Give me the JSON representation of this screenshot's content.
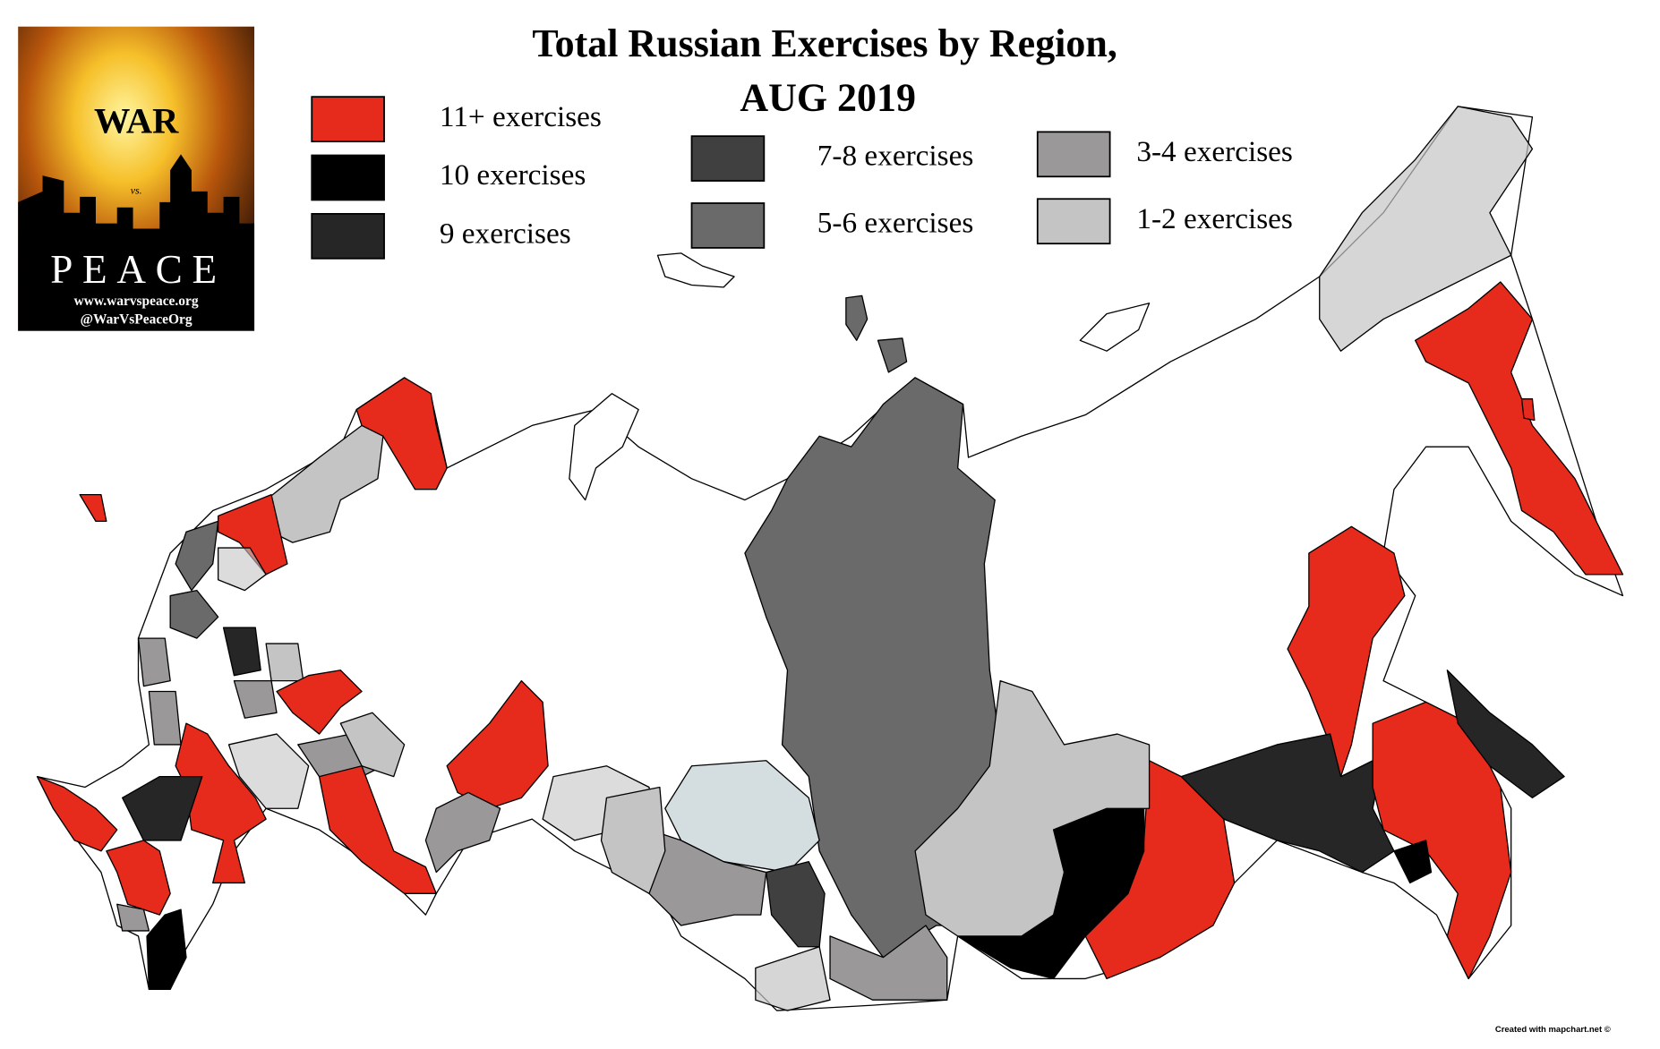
{
  "logo": {
    "top": "WAR",
    "middle": "vs.",
    "bottom": "PEACE",
    "url": "www.warvspeace.org",
    "handle": "@WarVsPeaceOrg"
  },
  "title": [
    "Total Russian Exercises by Region,",
    "AUG 2019"
  ],
  "legend": [
    {
      "label": "11+ exercises",
      "color": "#e62a1c"
    },
    {
      "label": "10 exercises",
      "color": "#000000"
    },
    {
      "label": "9 exercises",
      "color": "#262626"
    },
    {
      "label": "7-8 exercises",
      "color": "#404040"
    },
    {
      "label": "5-6 exercises",
      "color": "#6a6a6a"
    },
    {
      "label": "3-4 exercises",
      "color": "#9a9898"
    },
    {
      "label": "1-2 exercises",
      "color": "#c4c4c4"
    }
  ],
  "credit": "Created with mapchart.net ©"
}
